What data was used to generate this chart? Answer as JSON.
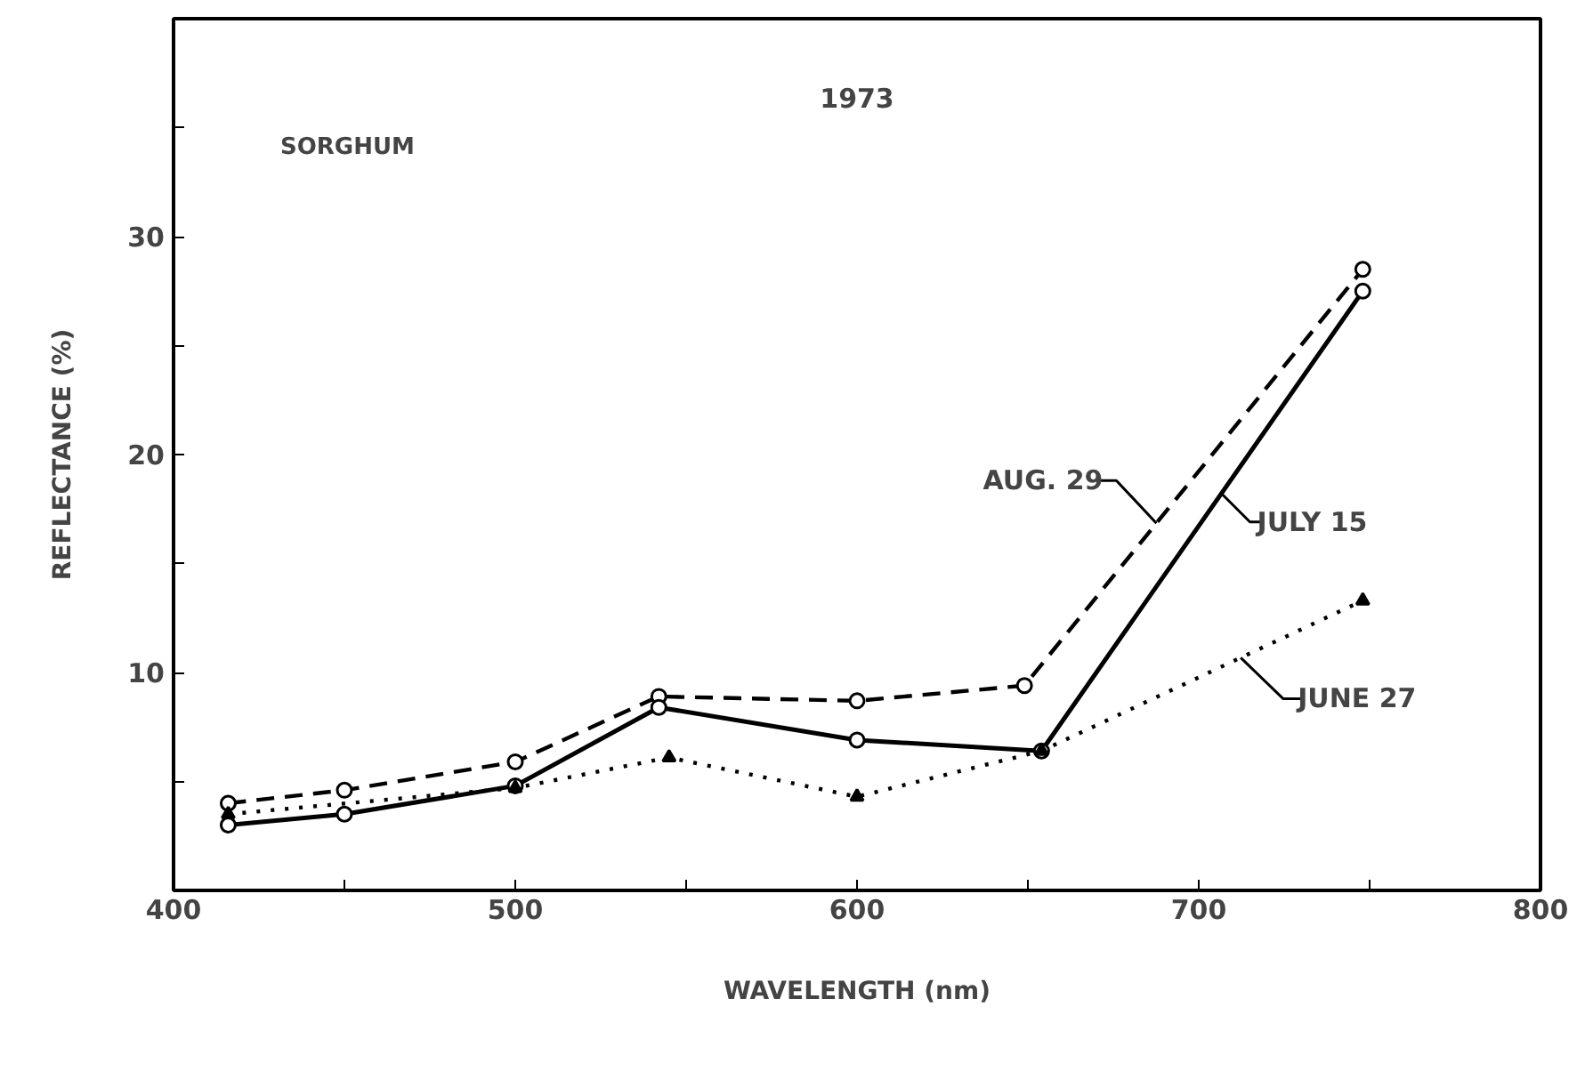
{
  "chart_data": {
    "type": "line",
    "title": "1973",
    "annotations": [
      "SORGHUM"
    ],
    "xlabel": "WAVELENGTH (nm)",
    "ylabel": "REFLECTANCE (%)",
    "xlim": [
      400,
      800
    ],
    "ylim": [
      0,
      40
    ],
    "xticks": [
      400,
      {
        "value": 450,
        "label": null
      },
      500,
      {
        "value": 550,
        "label": null
      },
      600,
      {
        "value": 650,
        "label": null
      },
      700,
      {
        "value": 750,
        "label": null
      },
      800
    ],
    "yticks": [
      {
        "value": 5,
        "label": null
      },
      10,
      {
        "value": 15,
        "label": null
      },
      20,
      {
        "value": 25,
        "label": null
      },
      30,
      {
        "value": 35,
        "label": null
      }
    ],
    "grid": false,
    "series": [
      {
        "name": "AUG. 29",
        "color": "#000000",
        "line_style": "dashed",
        "marker": "circle",
        "x": [
          416,
          450,
          500,
          542,
          600,
          649,
          748
        ],
        "values": [
          4.0,
          4.6,
          5.9,
          8.9,
          8.7,
          9.4,
          28.5
        ]
      },
      {
        "name": "JULY 15",
        "color": "#000000",
        "line_style": "solid",
        "marker": "circle",
        "x": [
          416,
          450,
          500,
          542,
          600,
          654,
          748
        ],
        "values": [
          3.0,
          3.5,
          4.8,
          8.4,
          6.9,
          6.4,
          27.5
        ]
      },
      {
        "name": "JUNE 27",
        "color": "#000000",
        "line_style": "dotted",
        "marker": "triangle",
        "x": [
          416,
          500,
          545,
          600,
          654,
          748
        ],
        "values": [
          3.5,
          4.7,
          6.1,
          4.3,
          6.4,
          13.3
        ]
      }
    ]
  }
}
